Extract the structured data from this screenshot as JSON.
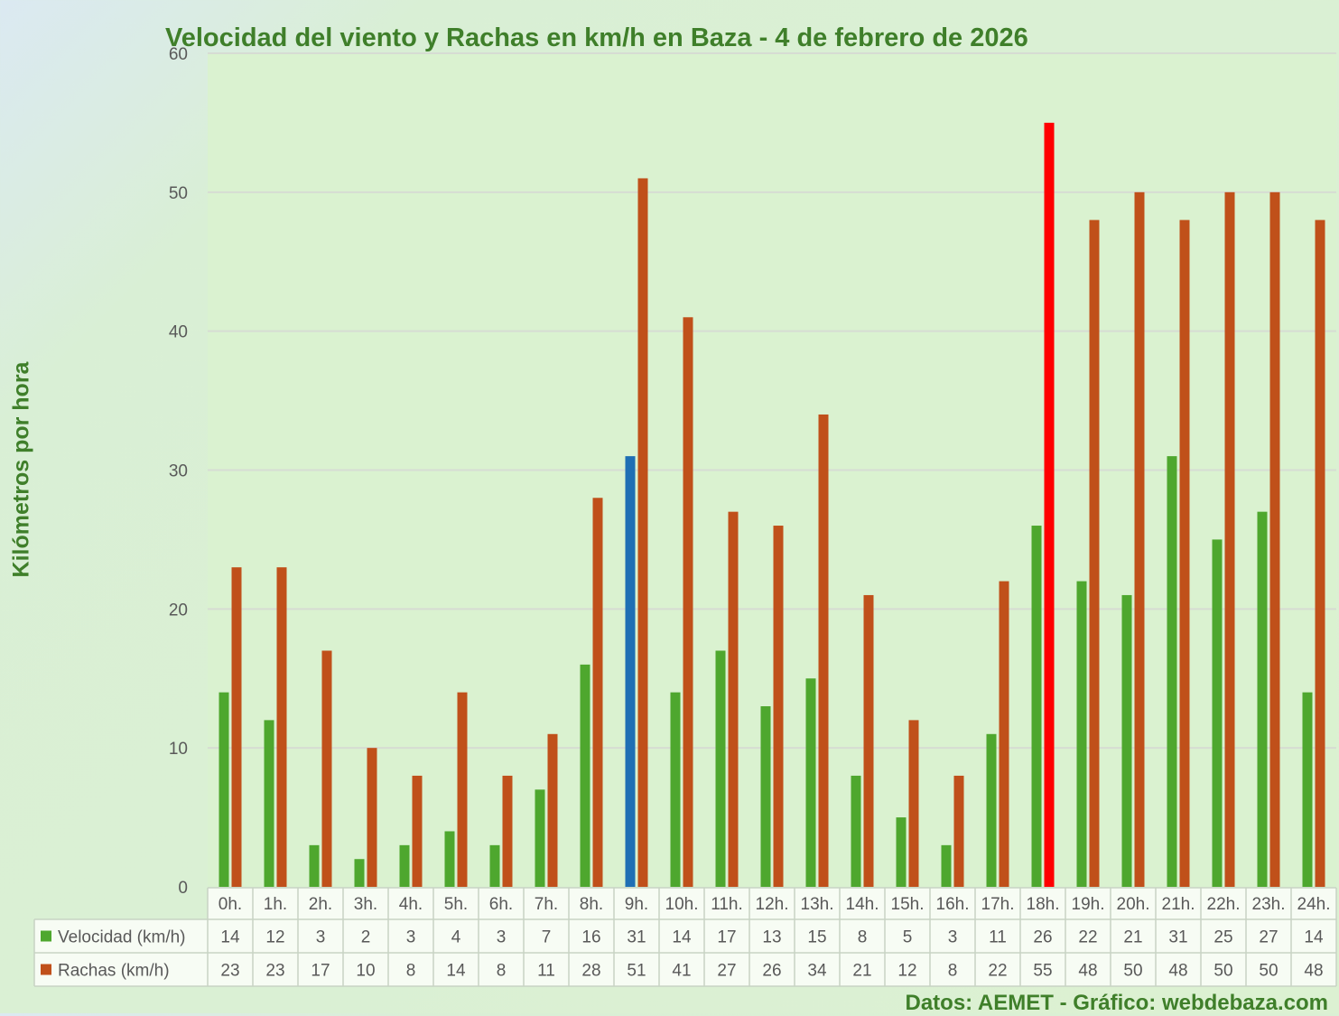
{
  "chart_data": {
    "type": "bar",
    "title": "Velocidad del viento y Rachas en km/h en Baza - 4 de febrero de 2026",
    "ylabel": "Kilómetros por hora",
    "xlabel": "",
    "ylim": [
      0,
      60
    ],
    "yticks": [
      0,
      10,
      20,
      30,
      40,
      50,
      60
    ],
    "grid": true,
    "legend": "data-table-left",
    "categories": [
      "0h.",
      "1h.",
      "2h.",
      "3h.",
      "4h.",
      "5h.",
      "6h.",
      "7h.",
      "8h.",
      "9h.",
      "10h.",
      "11h.",
      "12h.",
      "13h.",
      "14h.",
      "15h.",
      "16h.",
      "17h.",
      "18h.",
      "19h.",
      "20h.",
      "21h.",
      "22h.",
      "23h.",
      "24h."
    ],
    "series": [
      {
        "name": "Velocidad (km/h)",
        "color": "#4ea72e",
        "values": [
          14,
          12,
          3,
          2,
          3,
          4,
          3,
          7,
          16,
          31,
          14,
          17,
          13,
          15,
          8,
          5,
          3,
          11,
          26,
          22,
          21,
          31,
          25,
          27,
          14
        ]
      },
      {
        "name": "Rachas (km/h)",
        "color": "#c0501a",
        "values": [
          23,
          23,
          17,
          10,
          8,
          14,
          8,
          11,
          28,
          51,
          41,
          27,
          26,
          34,
          21,
          12,
          8,
          22,
          55,
          48,
          50,
          48,
          50,
          50,
          48
        ]
      }
    ],
    "highlights": [
      {
        "series": "Velocidad (km/h)",
        "category": "9h.",
        "color": "#1f6fb4"
      },
      {
        "series": "Rachas (km/h)",
        "category": "18h.",
        "color": "#ff0000"
      }
    ]
  },
  "credit": "Datos: AEMET - Gráfico: webdebaza.com",
  "colors": {
    "plot_background": "#daf2d0",
    "gridline": "#d6dcd3",
    "axis_text": "#595959",
    "title_text": "#3f7f2a",
    "table_background": "#f7fcf4",
    "table_border": "#c8d3c4"
  }
}
